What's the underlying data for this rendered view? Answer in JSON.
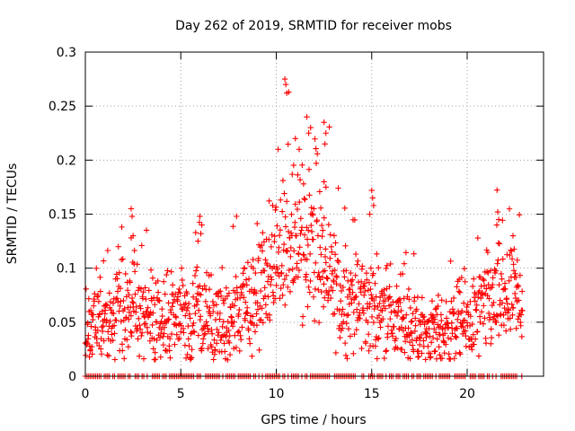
{
  "chart_data": {
    "type": "scatter",
    "title": "Day 262 of 2019, SRMTID for receiver mobs",
    "xlabel": "GPS time / hours",
    "ylabel": "SRMTID / TECUs",
    "xlim": [
      0,
      24
    ],
    "ylim": [
      0,
      0.3
    ],
    "xticks": [
      0,
      5,
      10,
      15,
      20
    ],
    "xtick_labels": [
      "0",
      "5",
      "10",
      "15",
      "20"
    ],
    "yticks": [
      0,
      0.05,
      0.1,
      0.15,
      0.2,
      0.25,
      0.3
    ],
    "ytick_labels": [
      "0",
      "0.05",
      "0.1",
      "0.15",
      "0.2",
      "0.25",
      "0.3"
    ],
    "grid": true,
    "marker": "+",
    "color": "#ff0000",
    "series": [
      {
        "name": "SRMTID",
        "trend": [
          [
            0,
            0.045
          ],
          [
            0.5,
            0.05
          ],
          [
            1,
            0.055
          ],
          [
            1.5,
            0.055
          ],
          [
            2,
            0.058
          ],
          [
            2.5,
            0.06
          ],
          [
            3,
            0.055
          ],
          [
            3.5,
            0.055
          ],
          [
            4,
            0.055
          ],
          [
            4.5,
            0.055
          ],
          [
            5,
            0.05
          ],
          [
            5.5,
            0.05
          ],
          [
            6,
            0.058
          ],
          [
            6.5,
            0.05
          ],
          [
            7,
            0.045
          ],
          [
            7.5,
            0.05
          ],
          [
            8,
            0.06
          ],
          [
            8.5,
            0.065
          ],
          [
            9,
            0.075
          ],
          [
            9.5,
            0.085
          ],
          [
            10,
            0.1
          ],
          [
            10.5,
            0.12
          ],
          [
            11,
            0.13
          ],
          [
            11.5,
            0.135
          ],
          [
            12,
            0.125
          ],
          [
            12.5,
            0.1
          ],
          [
            13,
            0.08
          ],
          [
            13.5,
            0.07
          ],
          [
            14,
            0.07
          ],
          [
            14.5,
            0.065
          ],
          [
            15,
            0.065
          ],
          [
            15.5,
            0.06
          ],
          [
            16,
            0.055
          ],
          [
            16.5,
            0.05
          ],
          [
            17,
            0.045
          ],
          [
            17.5,
            0.042
          ],
          [
            18,
            0.04
          ],
          [
            18.5,
            0.04
          ],
          [
            19,
            0.045
          ],
          [
            19.5,
            0.05
          ],
          [
            20,
            0.05
          ],
          [
            20.5,
            0.055
          ],
          [
            21,
            0.065
          ],
          [
            21.5,
            0.07
          ],
          [
            22,
            0.07
          ],
          [
            22.5,
            0.07
          ],
          [
            22.9,
            0.07
          ]
        ],
        "spikes": [
          [
            2.4,
            0.155
          ],
          [
            2.45,
            0.148
          ],
          [
            2.5,
            0.13
          ],
          [
            2.4,
            0.128
          ],
          [
            6.0,
            0.148
          ],
          [
            6.1,
            0.14
          ],
          [
            6.05,
            0.132
          ],
          [
            5.9,
            0.125
          ],
          [
            10.45,
            0.275
          ],
          [
            10.5,
            0.27
          ],
          [
            10.55,
            0.262
          ],
          [
            11.0,
            0.22
          ],
          [
            11.2,
            0.21
          ],
          [
            11.6,
            0.24
          ],
          [
            11.8,
            0.23
          ],
          [
            11.7,
            0.225
          ],
          [
            12.5,
            0.235
          ],
          [
            12.6,
            0.225
          ],
          [
            12.55,
            0.215
          ],
          [
            12.5,
            0.18
          ],
          [
            12.6,
            0.175
          ],
          [
            15.0,
            0.172
          ],
          [
            15.05,
            0.165
          ],
          [
            15.1,
            0.158
          ],
          [
            14.9,
            0.15
          ],
          [
            21.6,
            0.152
          ],
          [
            21.65,
            0.145
          ],
          [
            21.55,
            0.14
          ],
          [
            22.4,
            0.13
          ]
        ],
        "zero_band_x": [
          0,
          22.9
        ]
      }
    ]
  }
}
